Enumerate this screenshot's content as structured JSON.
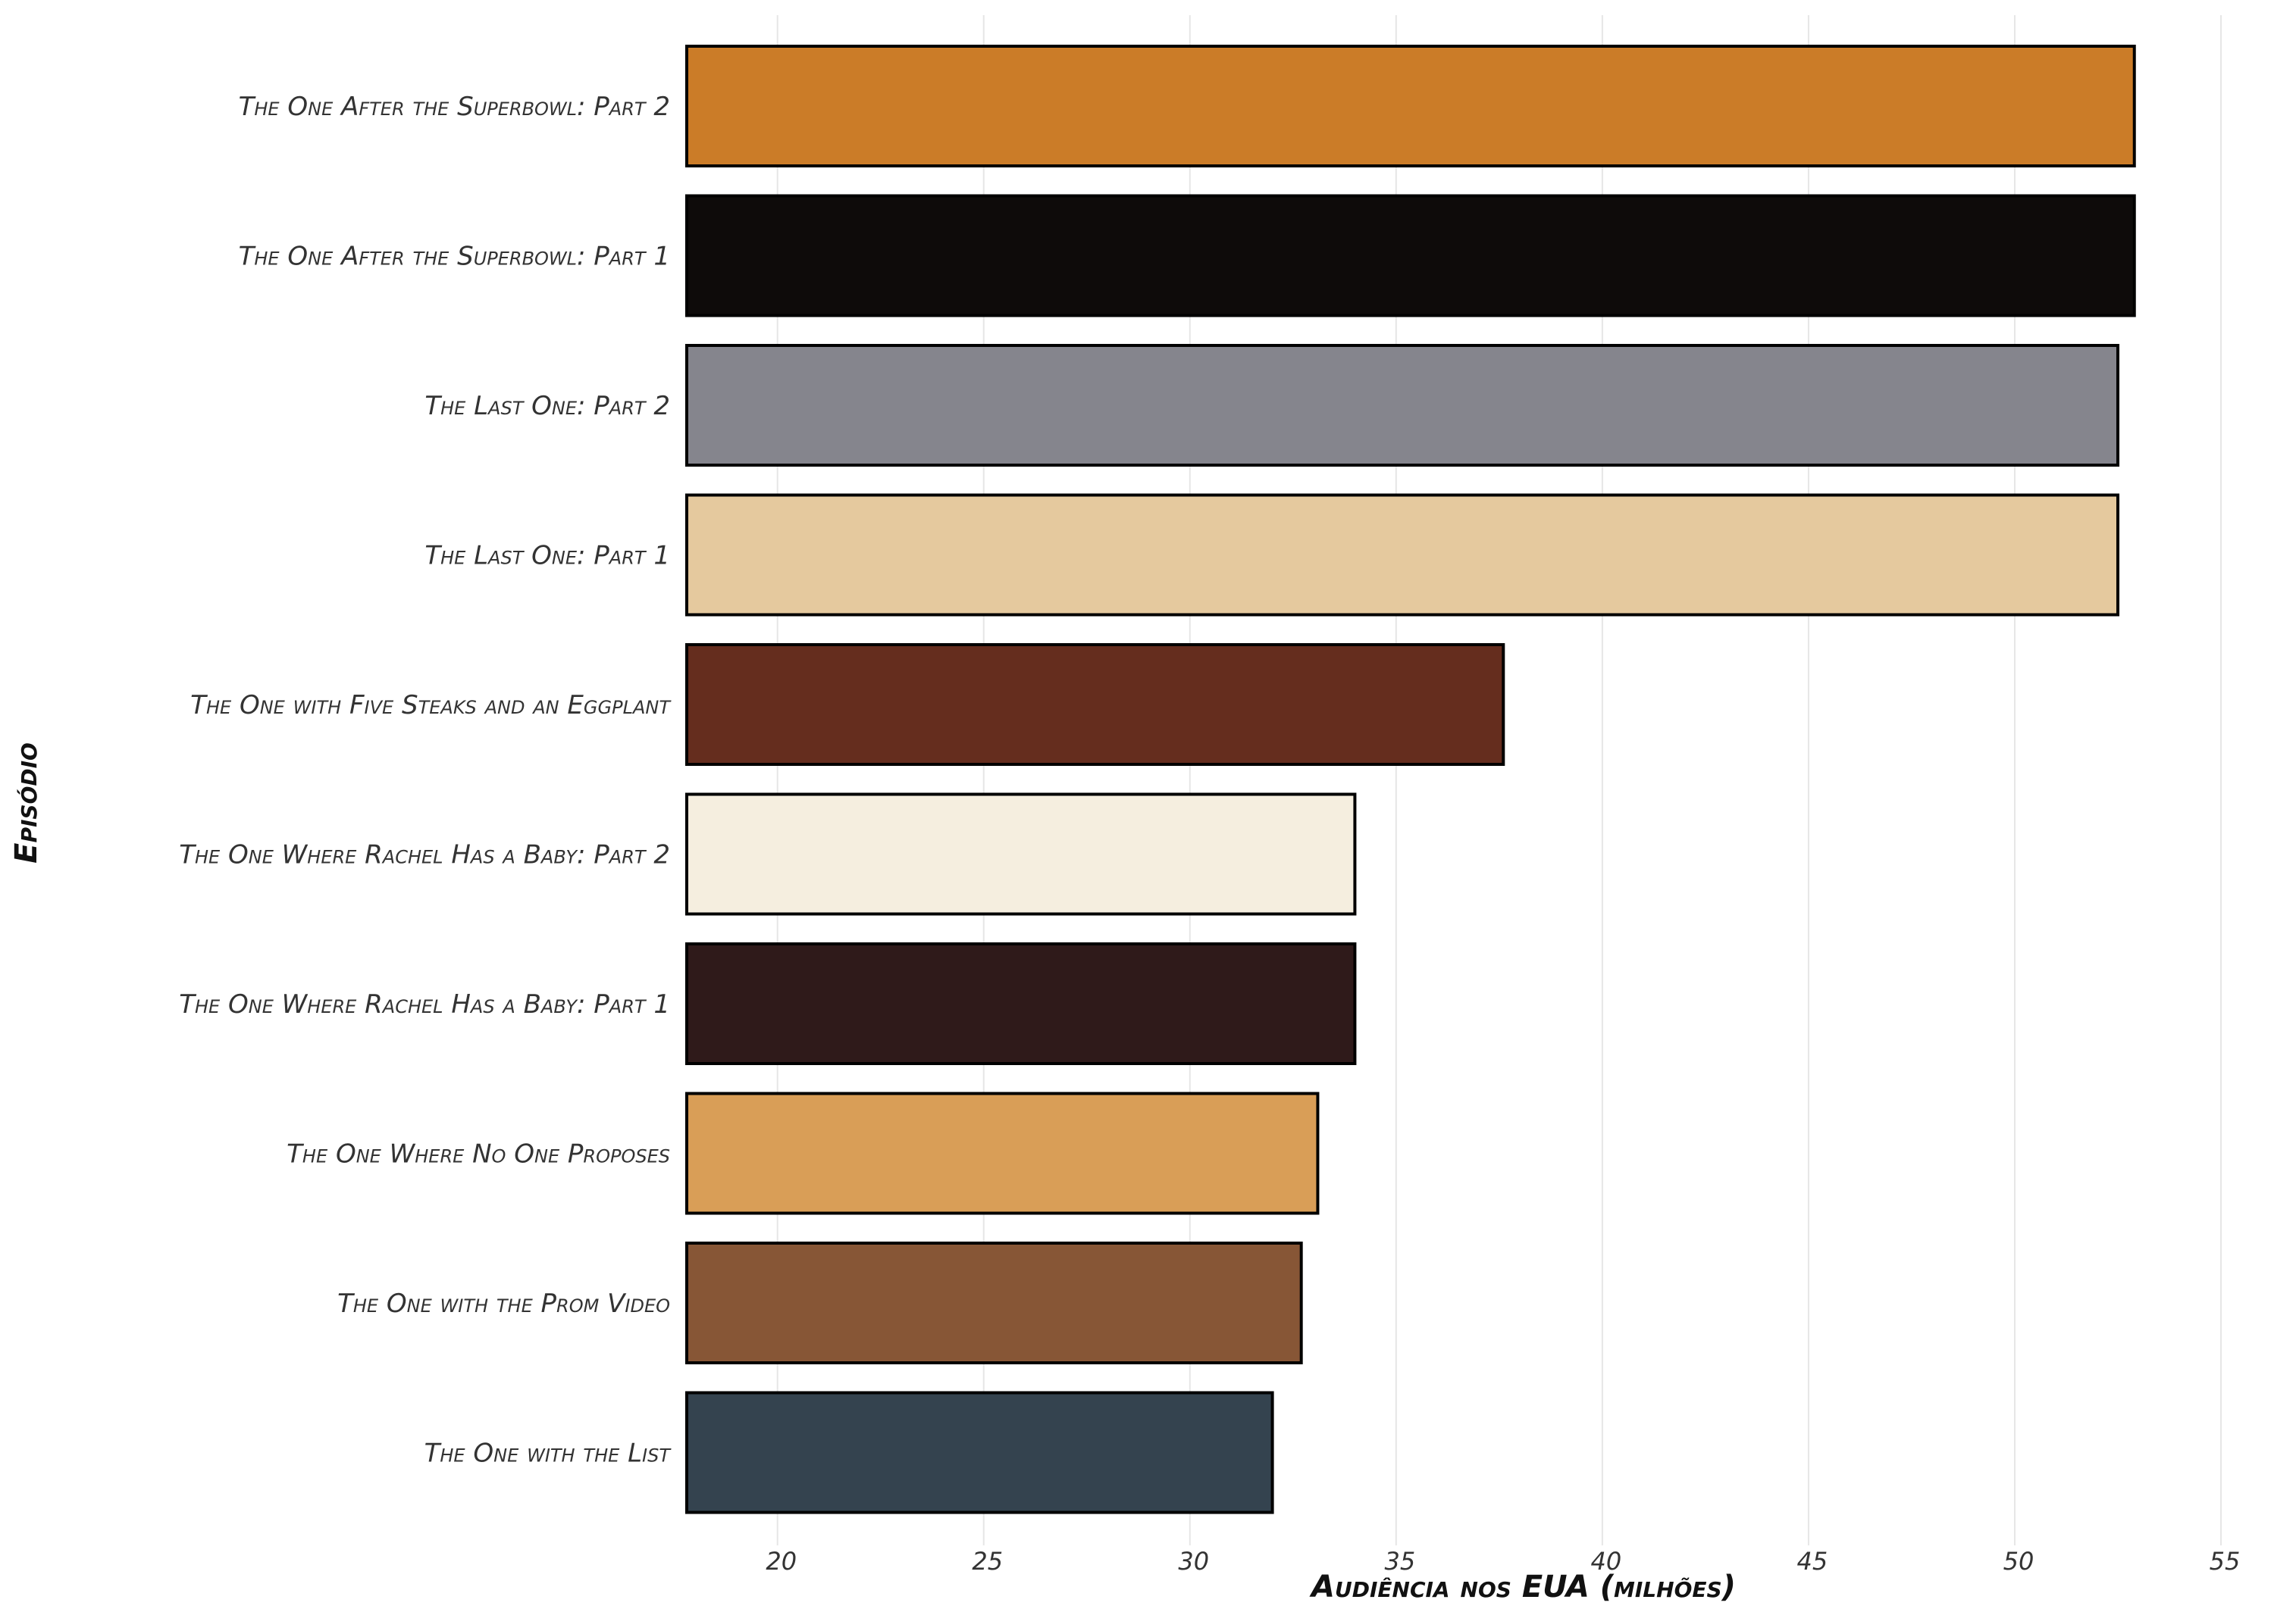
{
  "chart_data": {
    "type": "bar",
    "orientation": "horizontal",
    "xlabel": "Audiência nos EUA (milhões)",
    "ylabel": "Episódio",
    "xlim": [
      17.8,
      55
    ],
    "xticks": [
      20,
      25,
      30,
      35,
      40,
      45,
      50,
      55
    ],
    "grid": true,
    "categories": [
      "The One After the Superbowl: Part 2",
      "The One After the Superbowl: Part 1",
      "The Last One: Part 2",
      "The Last One: Part 1",
      "The One with Five Steaks and an Eggplant",
      "The One Where Rachel Has a Baby: Part 2",
      "The One Where Rachel Has a Baby: Part 1",
      "The One Where No One Proposes",
      "The One with the Prom Video",
      "The One with the List"
    ],
    "values": [
      52.9,
      52.9,
      52.5,
      52.5,
      37.6,
      34.0,
      34.0,
      33.1,
      32.7,
      32.0
    ],
    "colors": [
      "#CB7C28",
      "#0E0B0A",
      "#85858D",
      "#E5C99E",
      "#652D1E",
      "#F5EEDF",
      "#2F1A1A",
      "#D99E57",
      "#875636",
      "#34434F"
    ]
  }
}
